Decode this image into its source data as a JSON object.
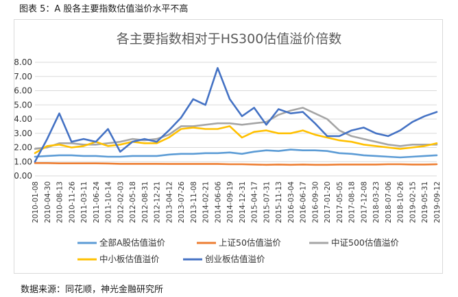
{
  "figure": {
    "caption": "图表 5：A 股各主要指数估值溢价水平不高",
    "source": "数据来源：同花顺，神光金融研究所"
  },
  "chart_data": {
    "type": "line",
    "title": "各主要指数相对于HS300估值溢价倍数",
    "xlabel": "",
    "ylabel": "",
    "ylim": [
      0,
      8
    ],
    "yticks": [
      "0.00",
      "1.00",
      "2.00",
      "3.00",
      "4.00",
      "5.00",
      "6.00",
      "7.00",
      "8.00"
    ],
    "grid": true,
    "legend_position": "bottom",
    "x": [
      "2010-01-08",
      "2010-04-30",
      "2010-08-13",
      "2010-11-26",
      "2011-03-11",
      "2011-06-24",
      "2011-10-14",
      "2012-02-03",
      "2012-05-18",
      "2012-08-31",
      "2012-12-21",
      "2013-04-12",
      "2013-07-26",
      "2013-11-08",
      "2014-02-21",
      "2014-06-06",
      "2014-09-19",
      "2014-12-31",
      "2015-04-17",
      "2015-07-31",
      "2015-11-13",
      "2016-03-04",
      "2016-06-17",
      "2016-09-30",
      "2017-01-20",
      "2017-05-05",
      "2017-08-18",
      "2017-12-08",
      "2018-03-23",
      "2018-07-06",
      "2018-10-26",
      "2019-02-15",
      "2019-05-31",
      "2019-09-12"
    ],
    "series": [
      {
        "name": "全部A股估值溢价",
        "color": "#5b9bd5",
        "values": [
          1.35,
          1.4,
          1.45,
          1.45,
          1.4,
          1.4,
          1.35,
          1.35,
          1.4,
          1.4,
          1.4,
          1.5,
          1.55,
          1.55,
          1.6,
          1.6,
          1.65,
          1.55,
          1.7,
          1.8,
          1.75,
          1.85,
          1.8,
          1.8,
          1.75,
          1.6,
          1.55,
          1.45,
          1.4,
          1.35,
          1.3,
          1.35,
          1.4,
          1.45
        ]
      },
      {
        "name": "上证50估值溢价",
        "color": "#ed7d31",
        "values": [
          0.9,
          0.9,
          0.88,
          0.88,
          0.88,
          0.88,
          0.87,
          0.85,
          0.85,
          0.85,
          0.85,
          0.84,
          0.84,
          0.84,
          0.84,
          0.84,
          0.82,
          0.82,
          0.8,
          0.78,
          0.8,
          0.78,
          0.8,
          0.78,
          0.78,
          0.8,
          0.8,
          0.8,
          0.8,
          0.82,
          0.82,
          0.8,
          0.8,
          0.82
        ]
      },
      {
        "name": "中证500估值溢价",
        "color": "#a5a5a5",
        "values": [
          1.9,
          2.0,
          2.3,
          2.3,
          2.2,
          2.2,
          2.3,
          2.4,
          2.6,
          2.5,
          2.6,
          2.9,
          3.5,
          3.5,
          3.6,
          3.7,
          3.7,
          3.6,
          3.7,
          3.8,
          4.3,
          4.6,
          4.8,
          4.4,
          4.0,
          3.2,
          2.8,
          2.6,
          2.4,
          2.2,
          2.1,
          2.2,
          2.2,
          2.2
        ]
      },
      {
        "name": "中小板估值溢价",
        "color": "#ffc000",
        "values": [
          1.6,
          2.1,
          2.2,
          2.0,
          2.1,
          2.4,
          2.1,
          2.2,
          2.4,
          2.3,
          2.3,
          2.7,
          3.3,
          3.4,
          3.3,
          3.3,
          3.5,
          2.7,
          3.1,
          3.2,
          3.0,
          3.0,
          3.2,
          2.9,
          2.7,
          2.5,
          2.4,
          2.2,
          2.1,
          2.0,
          1.9,
          2.0,
          2.1,
          2.3
        ]
      },
      {
        "name": "创业板估值溢价",
        "color": "#4472c4",
        "values": [
          1.0,
          2.6,
          4.4,
          2.4,
          2.6,
          2.4,
          3.3,
          1.7,
          2.4,
          2.6,
          2.4,
          3.2,
          4.1,
          5.4,
          5.0,
          7.6,
          5.4,
          4.2,
          4.8,
          3.6,
          4.7,
          4.4,
          4.5,
          3.7,
          2.8,
          2.8,
          3.2,
          3.4,
          3.0,
          2.8,
          3.2,
          3.8,
          4.2,
          4.5
        ]
      }
    ]
  }
}
